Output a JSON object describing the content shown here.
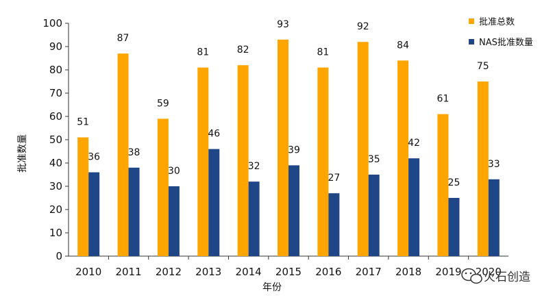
{
  "chart_data": {
    "type": "bar",
    "title": "",
    "xlabel": "年份",
    "ylabel": "批准数量",
    "ylim": [
      0,
      100
    ],
    "yticks": [
      0,
      10,
      20,
      30,
      40,
      50,
      60,
      70,
      80,
      90,
      100
    ],
    "categories": [
      "2010",
      "2011",
      "2012",
      "2013",
      "2014",
      "2015",
      "2016",
      "2017",
      "2018",
      "2019",
      "2020"
    ],
    "series": [
      {
        "name": "批准总数",
        "color": "#FFA500",
        "values": [
          51,
          87,
          59,
          81,
          82,
          93,
          81,
          92,
          84,
          61,
          75
        ]
      },
      {
        "name": "NAS批准数量",
        "color": "#1F4788",
        "values": [
          36,
          38,
          30,
          46,
          32,
          39,
          27,
          35,
          42,
          25,
          33
        ]
      }
    ],
    "data_labels": true,
    "grid": false,
    "legend_position": "top-right"
  },
  "watermark": {
    "text": "火石创造",
    "icon": "wechat-icon"
  }
}
